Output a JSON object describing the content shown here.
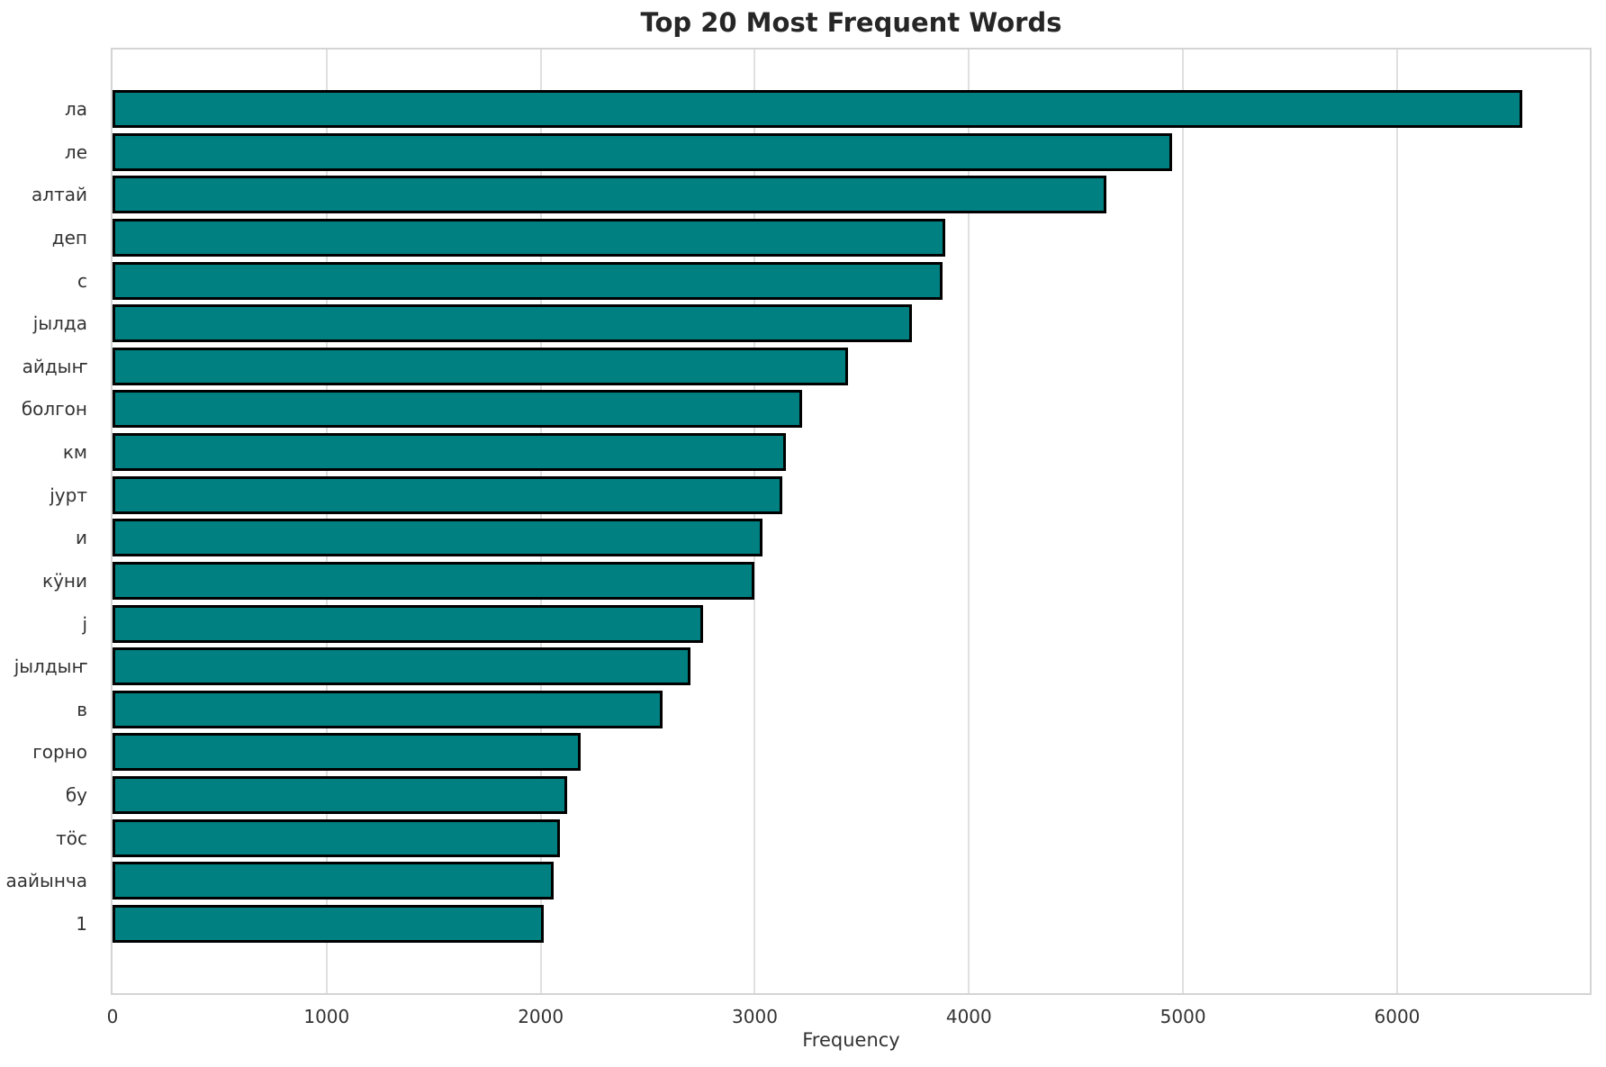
{
  "chart_data": {
    "type": "bar",
    "orientation": "horizontal",
    "title": "Top 20 Most Frequent Words",
    "xlabel": "Frequency",
    "ylabel": "",
    "categories": [
      "ла",
      "ле",
      "алтай",
      "деп",
      "с",
      "јылда",
      "айдыҥ",
      "болгон",
      "км",
      "јурт",
      "и",
      "кӱни",
      "ј",
      "јылдыҥ",
      "в",
      "горно",
      "бу",
      "тӧс",
      "аайынча",
      "1"
    ],
    "values": [
      6585,
      4950,
      4640,
      3890,
      3875,
      3735,
      3435,
      3220,
      3145,
      3130,
      3035,
      3000,
      2760,
      2700,
      2570,
      2185,
      2125,
      2090,
      2060,
      2015
    ],
    "xlim": [
      0,
      6900
    ],
    "xticks": [
      0,
      1000,
      2000,
      3000,
      4000,
      5000,
      6000
    ],
    "grid": "vertical",
    "legend": "none",
    "bar_color": "#008080",
    "bar_edge_color": "#000000"
  }
}
